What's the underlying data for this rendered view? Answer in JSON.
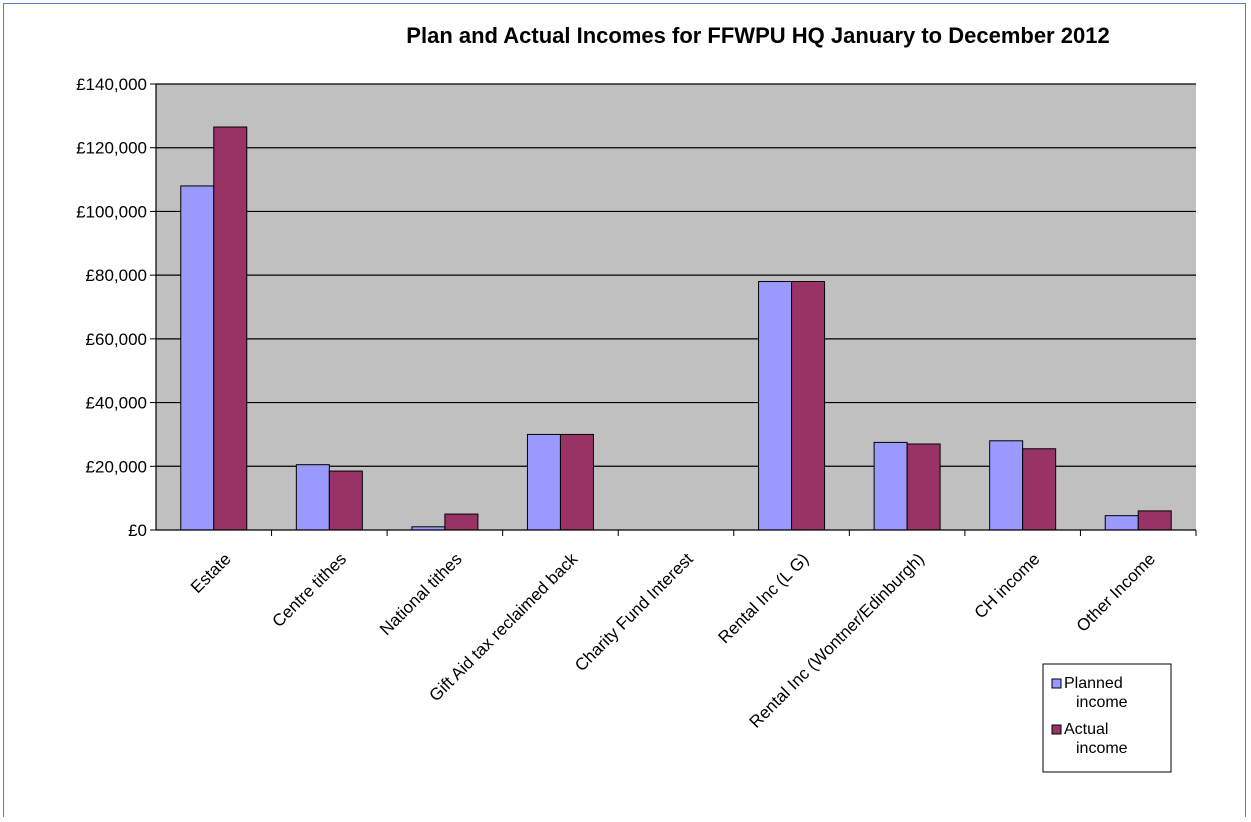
{
  "chart_data": {
    "type": "bar",
    "title": "Plan and Actual Incomes for FFWPU HQ January to December 2012",
    "xlabel": "",
    "ylabel": "",
    "ylim": [
      0,
      140000
    ],
    "yticks": [
      0,
      20000,
      40000,
      60000,
      80000,
      100000,
      120000,
      140000
    ],
    "ytick_labels": [
      "£0",
      "£20,000",
      "£40,000",
      "£60,000",
      "£80,000",
      "£100,000",
      "£120,000",
      "£140,000"
    ],
    "grid": true,
    "legend_position": "bottom-right",
    "categories": [
      "Estate",
      "Centre tithes",
      "National tithes",
      "Gift Aid tax reclaimed back",
      "Charity Fund Interest",
      "Rental Inc (L G)",
      "Rental Inc (Wontner/Edinburgh)",
      "CH income",
      "Other Income"
    ],
    "series": [
      {
        "name": "Planned income",
        "legend_lines": [
          "Planned",
          "income"
        ],
        "color": "#9999ff",
        "values": [
          108000,
          20500,
          1000,
          30000,
          0,
          78000,
          27500,
          28000,
          4500
        ]
      },
      {
        "name": "Actual income",
        "legend_lines": [
          "Actual",
          "income"
        ],
        "color": "#993366",
        "values": [
          126500,
          18500,
          5000,
          30000,
          0,
          78000,
          27000,
          25500,
          6000
        ]
      }
    ],
    "colors": {
      "plot_background": "#c0c0c0",
      "gridline": "#000000",
      "frame": "#5b7fbf"
    }
  }
}
